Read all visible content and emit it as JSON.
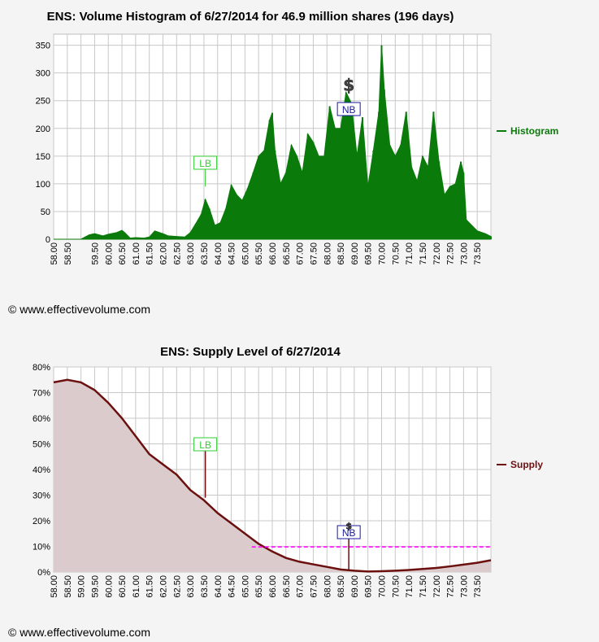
{
  "copyright": "© www.effectivevolume.com",
  "colors": {
    "histogram": "#0a7a0a",
    "supply_line": "#6b0f0f",
    "supply_fill": "#dccbcc",
    "lb": "#33cc33",
    "nb": "#1a1aa0",
    "dashed": "#ff00ff",
    "grid": "#c8c8c8",
    "plot_bg": "#ffffff"
  },
  "chart_data": [
    {
      "type": "area",
      "title": "ENS: Volume Histogram of 6/27/2014 for 46.9 million shares (196 days)",
      "legend": {
        "label": "Histogram",
        "placement": "right"
      },
      "xlim": [
        58.0,
        74.0
      ],
      "ylim": [
        0,
        370
      ],
      "y_ticks": [
        0,
        50,
        100,
        150,
        200,
        250,
        300,
        350
      ],
      "x_tick_labels": [
        "58.00",
        "58.50",
        "59.50",
        "60.00",
        "60.50",
        "61.00",
        "61.50",
        "62.00",
        "62.50",
        "63.00",
        "63.50",
        "64.00",
        "64.50",
        "65.00",
        "65.50",
        "66.00",
        "66.50",
        "67.00",
        "67.50",
        "68.00",
        "68.50",
        "69.00",
        "69.50",
        "70.00",
        "70.50",
        "71.00",
        "71.50",
        "72.00",
        "72.50",
        "73.00",
        "73.50"
      ],
      "x_tick_values": [
        58.0,
        58.5,
        59.5,
        60.0,
        60.5,
        61.0,
        61.5,
        62.0,
        62.5,
        63.0,
        63.5,
        64.0,
        64.5,
        65.0,
        65.5,
        66.0,
        66.5,
        67.0,
        67.5,
        68.0,
        68.5,
        69.0,
        69.5,
        70.0,
        70.5,
        71.0,
        71.5,
        72.0,
        72.5,
        73.0,
        73.5
      ],
      "grid": true,
      "markers": [
        {
          "label": "LB",
          "x": 63.55,
          "y": 95
        },
        {
          "label": "NB",
          "x": 68.8,
          "y": 225
        },
        {
          "label": "$",
          "x": 68.8,
          "y": 275
        }
      ],
      "series": [
        {
          "name": "Histogram",
          "x": [
            58.0,
            58.5,
            59.0,
            59.3,
            59.5,
            59.8,
            60.0,
            60.3,
            60.5,
            60.6,
            60.8,
            61.0,
            61.3,
            61.5,
            61.7,
            62.0,
            62.2,
            62.5,
            62.8,
            63.0,
            63.2,
            63.4,
            63.55,
            63.7,
            63.9,
            64.1,
            64.3,
            64.5,
            64.7,
            64.9,
            65.1,
            65.3,
            65.5,
            65.7,
            65.9,
            66.0,
            66.1,
            66.3,
            66.5,
            66.7,
            66.9,
            67.1,
            67.3,
            67.5,
            67.7,
            67.9,
            68.1,
            68.3,
            68.5,
            68.7,
            68.9,
            69.1,
            69.3,
            69.5,
            69.7,
            69.9,
            70.0,
            70.1,
            70.3,
            70.5,
            70.7,
            70.9,
            71.1,
            71.3,
            71.5,
            71.7,
            71.9,
            72.1,
            72.3,
            72.5,
            72.7,
            72.9,
            73.0,
            73.1,
            73.3,
            73.5,
            73.8,
            74.0
          ],
          "y": [
            0,
            0,
            0,
            8,
            10,
            6,
            9,
            12,
            16,
            12,
            2,
            3,
            2,
            4,
            15,
            10,
            6,
            5,
            4,
            12,
            28,
            45,
            72,
            55,
            25,
            30,
            55,
            98,
            80,
            70,
            92,
            120,
            150,
            160,
            215,
            228,
            160,
            100,
            120,
            170,
            150,
            120,
            190,
            175,
            150,
            150,
            240,
            200,
            200,
            265,
            245,
            150,
            220,
            95,
            160,
            230,
            350,
            270,
            170,
            150,
            170,
            230,
            130,
            105,
            150,
            130,
            230,
            140,
            80,
            95,
            100,
            140,
            120,
            35,
            25,
            15,
            10,
            5
          ]
        }
      ]
    },
    {
      "type": "area",
      "title": "ENS: Supply Level of 6/27/2014",
      "legend": {
        "label": "Supply",
        "placement": "right"
      },
      "xlim": [
        58.0,
        74.0
      ],
      "ylim": [
        0,
        80
      ],
      "y_ticks": [
        0,
        10,
        20,
        30,
        40,
        50,
        60,
        70,
        80
      ],
      "y_tick_labels": [
        "0%",
        "10%",
        "20%",
        "30%",
        "40%",
        "50%",
        "60%",
        "70%",
        "80%"
      ],
      "x_tick_labels": [
        "58.00",
        "58.50",
        "59.00",
        "59.50",
        "60.00",
        "60.50",
        "61.00",
        "61.50",
        "62.00",
        "62.50",
        "63.00",
        "63.50",
        "64.00",
        "64.50",
        "65.00",
        "65.50",
        "66.00",
        "66.50",
        "67.00",
        "67.50",
        "68.00",
        "68.50",
        "69.00",
        "69.50",
        "70.00",
        "70.50",
        "71.00",
        "71.50",
        "72.00",
        "72.50",
        "73.00",
        "73.50"
      ],
      "x_tick_values": [
        58.0,
        58.5,
        59.0,
        59.5,
        60.0,
        60.5,
        61.0,
        61.5,
        62.0,
        62.5,
        63.0,
        63.5,
        64.0,
        64.5,
        65.0,
        65.5,
        66.0,
        66.5,
        67.0,
        67.5,
        68.0,
        68.5,
        69.0,
        69.5,
        70.0,
        70.5,
        71.0,
        71.5,
        72.0,
        72.5,
        73.0,
        73.5
      ],
      "grid": true,
      "reference_line": {
        "y": 9.8,
        "x_start": 65.25,
        "x_end": 74.0,
        "style": "dashed"
      },
      "markers": [
        {
          "label": "LB",
          "x": 63.55,
          "y": 29
        },
        {
          "label": "NB",
          "x": 68.8,
          "y": 0.5
        },
        {
          "label": "$",
          "x": 68.8,
          "y": 0.5
        }
      ],
      "series": [
        {
          "name": "Supply",
          "x": [
            58.0,
            58.5,
            59.0,
            59.5,
            60.0,
            60.5,
            61.0,
            61.5,
            62.0,
            62.5,
            63.0,
            63.5,
            64.0,
            64.5,
            65.0,
            65.5,
            66.0,
            66.5,
            67.0,
            67.5,
            68.0,
            68.5,
            69.0,
            69.5,
            70.0,
            70.5,
            71.0,
            71.5,
            72.0,
            72.5,
            73.0,
            73.5,
            74.0
          ],
          "y": [
            74,
            75,
            74,
            71,
            66,
            60,
            53,
            46,
            42,
            38,
            32,
            28,
            23,
            19,
            15,
            11,
            8,
            5.5,
            4,
            3,
            2,
            1,
            0.5,
            0.2,
            0.3,
            0.5,
            0.8,
            1.2,
            1.6,
            2.2,
            2.9,
            3.6,
            4.6
          ]
        }
      ]
    }
  ]
}
